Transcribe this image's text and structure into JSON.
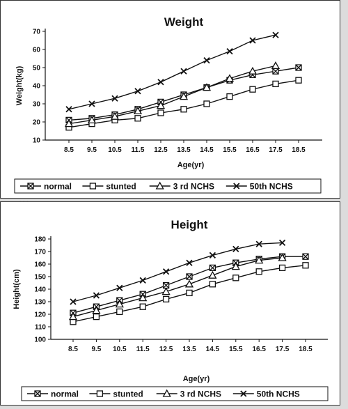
{
  "chart_data": [
    {
      "type": "line",
      "title": "Weight",
      "xlabel": "Age(yr)",
      "ylabel": "Weight(kg)",
      "categories": [
        "8.5",
        "9.5",
        "10.5",
        "11.5",
        "12.5",
        "13.5",
        "14.5",
        "15.5",
        "16.5",
        "17.5",
        "18.5"
      ],
      "ylim": [
        10,
        70
      ],
      "yticks": [
        10,
        20,
        30,
        40,
        50,
        60,
        70
      ],
      "grid": false,
      "legend_position": "bottom",
      "series": [
        {
          "name": "normal",
          "marker": "square-x",
          "values": [
            21,
            22,
            24,
            27,
            31,
            35,
            39,
            43,
            46,
            48,
            50
          ]
        },
        {
          "name": "stunted",
          "marker": "square",
          "values": [
            17,
            19,
            21,
            22,
            25,
            27,
            30,
            34,
            38,
            41,
            43
          ]
        },
        {
          "name": "3 rd NCHS",
          "marker": "triangle",
          "values": [
            19,
            21,
            23,
            26,
            29,
            34,
            39,
            44,
            48,
            51,
            null
          ]
        },
        {
          "name": "50th NCHS",
          "marker": "x",
          "values": [
            27,
            30,
            33,
            37,
            42,
            48,
            54,
            59,
            65,
            68,
            null
          ]
        }
      ]
    },
    {
      "type": "line",
      "title": "Height",
      "xlabel": "Age(yr)",
      "ylabel": "Height(cm)",
      "categories": [
        "8.5",
        "9.5",
        "10.5",
        "11.5",
        "12.5",
        "13.5",
        "14.5",
        "15.5",
        "16.5",
        "17.5",
        "18.5"
      ],
      "ylim": [
        100,
        180
      ],
      "yticks": [
        100,
        110,
        120,
        130,
        140,
        150,
        160,
        170,
        180
      ],
      "grid": false,
      "legend_position": "bottom",
      "series": [
        {
          "name": "normal",
          "marker": "square-x",
          "values": [
            121,
            126,
            131,
            136,
            143,
            150,
            157,
            161,
            164,
            166,
            166
          ]
        },
        {
          "name": "stunted",
          "marker": "square",
          "values": [
            114,
            118,
            122,
            126,
            132,
            137,
            144,
            149,
            154,
            157,
            159
          ]
        },
        {
          "name": "3 rd NCHS",
          "marker": "triangle",
          "values": [
            118,
            123,
            128,
            133,
            138,
            144,
            151,
            158,
            163,
            165,
            null
          ]
        },
        {
          "name": "50th NCHS",
          "marker": "x",
          "values": [
            130,
            135,
            141,
            147,
            154,
            161,
            167,
            172,
            176,
            177,
            null
          ]
        }
      ]
    }
  ]
}
